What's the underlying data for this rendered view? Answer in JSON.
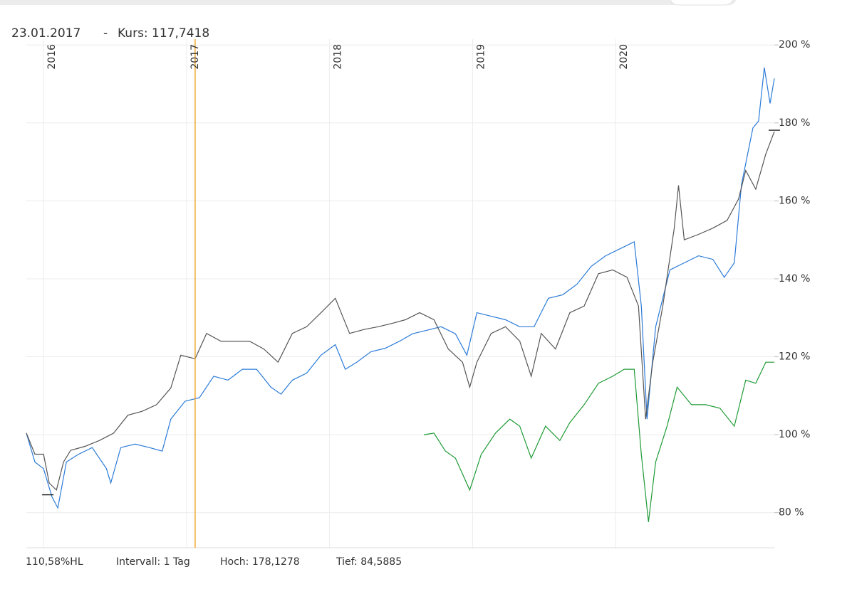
{
  "chart_data": {
    "type": "line",
    "crosshair": {
      "date_label": "23.01.2017",
      "value_label": "Kurs: 117,7418",
      "x": 2017.06,
      "color": "#f0a830"
    },
    "footer": {
      "scale_label": "110,58%HL",
      "interval_label": "Intervall: 1 Tag"
    },
    "high": {
      "label": "Hoch: 178,1278",
      "value": 178.1278,
      "x": 2021.11
    },
    "low": {
      "label": "Tief: 84,5885",
      "value": 84.5885,
      "x": 2016.03
    },
    "xlim": [
      2015.88,
      2021.11
    ],
    "xticks": [
      2016,
      2017,
      2018,
      2019,
      2020
    ],
    "ylim": [
      71,
      201.5
    ],
    "yticks": [
      {
        "value": 80,
        "label": "80 %"
      },
      {
        "value": 100,
        "label": "100 %"
      },
      {
        "value": 120,
        "label": "120 %"
      },
      {
        "value": 140,
        "label": "140 %"
      },
      {
        "value": 160,
        "label": "160 %"
      },
      {
        "value": 180,
        "label": "180 %"
      },
      {
        "value": 200,
        "label": "200 %"
      }
    ],
    "grid": true,
    "series": [
      {
        "color": "#2b7bd8",
        "x": [
          2015.88,
          2015.94,
          2016.0,
          2016.06,
          2016.1,
          2016.16,
          2016.24,
          2016.34,
          2016.44,
          2016.47,
          2016.54,
          2016.64,
          2016.74,
          2016.83,
          2016.89,
          2016.99,
          2017.09,
          2017.19,
          2017.29,
          2017.39,
          2017.49,
          2017.59,
          2017.66,
          2017.74,
          2017.84,
          2017.94,
          2018.04,
          2018.11,
          2018.19,
          2018.29,
          2018.39,
          2018.49,
          2018.58,
          2018.68,
          2018.78,
          2018.88,
          2018.96,
          2019.03,
          2019.13,
          2019.23,
          2019.33,
          2019.43,
          2019.53,
          2019.63,
          2019.73,
          2019.83,
          2019.93,
          2020.03,
          2020.13,
          2020.18,
          2020.22,
          2020.28,
          2020.38,
          2020.48,
          2020.58,
          2020.68,
          2020.76,
          2020.83,
          2020.88,
          2020.96,
          2021.0,
          2021.04,
          2021.08,
          2021.11
        ],
        "values": [
          100.4,
          93,
          91.3,
          84,
          81.2,
          93,
          94.9,
          96.7,
          91.3,
          87.6,
          96.7,
          97.6,
          96.7,
          95.8,
          104,
          108.6,
          109.5,
          115,
          114,
          116.8,
          116.8,
          112.2,
          110.4,
          114,
          115.8,
          120.4,
          123.1,
          116.8,
          118.6,
          121.3,
          122.2,
          124,
          125.9,
          126.8,
          127.7,
          125.9,
          120.4,
          131.3,
          130.4,
          129.5,
          127.7,
          127.7,
          135,
          135.9,
          138.6,
          143.2,
          145.9,
          147.7,
          149.5,
          133,
          104,
          127.7,
          142.3,
          144.1,
          145.9,
          145,
          140.4,
          144.1,
          164.1,
          178.7,
          180.5,
          194.2,
          185,
          191.4
        ]
      },
      {
        "color": "#555555",
        "x": [
          2015.88,
          2015.94,
          2016.0,
          2016.04,
          2016.09,
          2016.14,
          2016.19,
          2016.29,
          2016.39,
          2016.49,
          2016.59,
          2016.69,
          2016.79,
          2016.89,
          2016.96,
          2017.06,
          2017.14,
          2017.24,
          2017.34,
          2017.44,
          2017.54,
          2017.64,
          2017.74,
          2017.84,
          2017.94,
          2018.04,
          2018.14,
          2018.24,
          2018.34,
          2018.44,
          2018.53,
          2018.63,
          2018.73,
          2018.83,
          2018.93,
          2018.98,
          2019.03,
          2019.13,
          2019.23,
          2019.33,
          2019.41,
          2019.48,
          2019.58,
          2019.68,
          2019.78,
          2019.88,
          2019.98,
          2020.08,
          2020.16,
          2020.21,
          2020.26,
          2020.33,
          2020.41,
          2020.44,
          2020.48,
          2020.58,
          2020.68,
          2020.78,
          2020.86,
          2020.91,
          2020.98,
          2021.05,
          2021.11
        ],
        "values": [
          100.4,
          95,
          95,
          87.6,
          85.8,
          93,
          96,
          97,
          98.5,
          100.4,
          105,
          106,
          107.7,
          112,
          120.4,
          119.5,
          126,
          124,
          124,
          124,
          122,
          118.6,
          126,
          127.7,
          131.3,
          135,
          126,
          127,
          127.7,
          128.6,
          129.5,
          131.3,
          129.5,
          122,
          118.6,
          112.2,
          118.6,
          126,
          127.7,
          124,
          115,
          126,
          122,
          131.3,
          133,
          141.3,
          142.3,
          140.4,
          133,
          104,
          118.6,
          133,
          153,
          164,
          150,
          151.4,
          153,
          155,
          160.5,
          167.8,
          163,
          172,
          177.8
        ]
      },
      {
        "color": "#1e9a35",
        "x": [
          2018.66,
          2018.73,
          2018.81,
          2018.88,
          2018.98,
          2019.06,
          2019.16,
          2019.26,
          2019.33,
          2019.41,
          2019.51,
          2019.61,
          2019.68,
          2019.78,
          2019.88,
          2019.98,
          2020.06,
          2020.13,
          2020.18,
          2020.23,
          2020.28,
          2020.36,
          2020.43,
          2020.53,
          2020.63,
          2020.73,
          2020.83,
          2020.91,
          2020.98,
          2021.05,
          2021.11
        ],
        "values": [
          100,
          100.4,
          95.8,
          94,
          85.8,
          94.9,
          100.4,
          104,
          102.2,
          94,
          102.2,
          98.5,
          103.1,
          107.7,
          113.2,
          115,
          116.8,
          116.8,
          94.9,
          77.6,
          93,
          102.2,
          112.2,
          107.7,
          107.7,
          106.8,
          102.2,
          114,
          113.2,
          118.6,
          118.6
        ]
      }
    ]
  }
}
